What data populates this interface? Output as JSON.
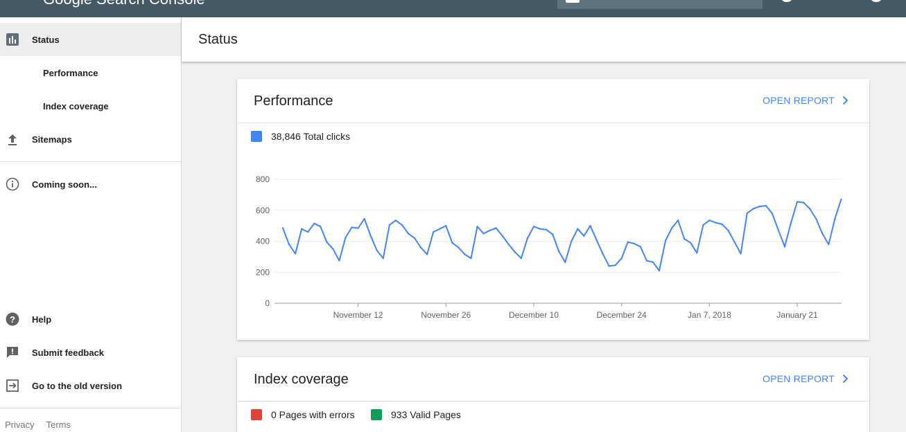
{
  "app": {
    "title": "Google Search Console",
    "colors": {
      "topbar": "#455a64",
      "accent": "#4285f4",
      "error": "#db4437",
      "valid": "#0f9d58"
    }
  },
  "sidebar": {
    "items": [
      {
        "label": "Status",
        "icon": "bar-chart-icon",
        "active": true
      },
      {
        "label": "Performance",
        "sub": true
      },
      {
        "label": "Index coverage",
        "sub": true
      },
      {
        "label": "Sitemaps",
        "icon": "upload-icon"
      },
      {
        "label": "Coming soon...",
        "icon": "info-icon"
      },
      {
        "label": "Help",
        "icon": "help-icon"
      },
      {
        "label": "Submit feedback",
        "icon": "feedback-icon"
      },
      {
        "label": "Go to the old version",
        "icon": "exit-icon"
      }
    ],
    "footer": {
      "privacy": "Privacy",
      "terms": "Terms"
    }
  },
  "main": {
    "title": "Status",
    "performance": {
      "title": "Performance",
      "open_report": "OPEN REPORT",
      "legend": "38,846 Total clicks"
    },
    "index_coverage": {
      "title": "Index coverage",
      "open_report": "OPEN REPORT",
      "errors_legend": "0 Pages with errors",
      "valid_legend": "933 Valid Pages"
    }
  },
  "chart_data": {
    "type": "line",
    "title": "",
    "xlabel": "",
    "ylabel": "",
    "ylim": [
      0,
      800
    ],
    "yticks": [
      0,
      200,
      400,
      600,
      800
    ],
    "xticks": [
      "November 12",
      "November 26",
      "December 10",
      "December 24",
      "Jan 7, 2018",
      "January 21"
    ],
    "x_start": "2017-10-31",
    "series": [
      {
        "name": "Total clicks",
        "color": "#4285f4",
        "values": [
          485,
          380,
          320,
          480,
          460,
          515,
          495,
          395,
          350,
          275,
          425,
          490,
          485,
          545,
          435,
          340,
          290,
          505,
          535,
          505,
          450,
          420,
          360,
          315,
          460,
          480,
          500,
          390,
          360,
          315,
          290,
          495,
          450,
          470,
          485,
          435,
          380,
          330,
          290,
          420,
          495,
          480,
          475,
          445,
          335,
          265,
          400,
          480,
          435,
          500,
          410,
          320,
          240,
          245,
          290,
          395,
          385,
          365,
          275,
          265,
          210,
          405,
          485,
          535,
          415,
          390,
          325,
          505,
          535,
          520,
          510,
          470,
          395,
          320,
          580,
          610,
          625,
          630,
          580,
          470,
          365,
          520,
          655,
          650,
          610,
          545,
          450,
          380,
          545,
          670
        ]
      }
    ]
  }
}
